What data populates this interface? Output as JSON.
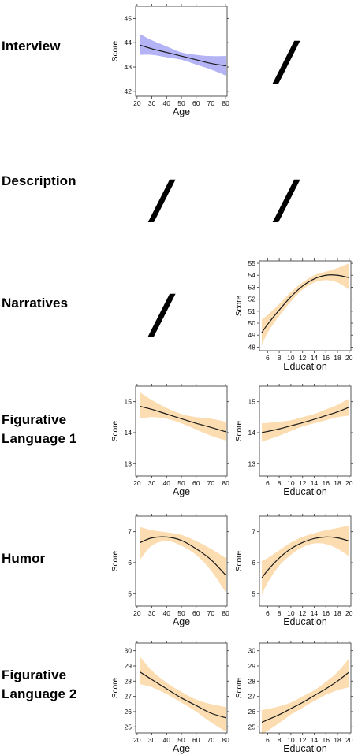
{
  "rows": [
    {
      "label_lines": [
        "Interview"
      ]
    },
    {
      "label_lines": [
        "Description"
      ]
    },
    {
      "label_lines": [
        "Narratives"
      ]
    },
    {
      "label_lines": [
        "Figurative",
        "Language 1"
      ]
    },
    {
      "label_lines": [
        "Humor"
      ]
    },
    {
      "label_lines": [
        "Figurative",
        "Language 2"
      ]
    }
  ],
  "slash_glyph": "/",
  "chart_data": [
    {
      "id": "interview-age",
      "type": "line",
      "xlabel": "Age",
      "ylabel": "Score",
      "xlim": [
        19,
        81
      ],
      "ylim": [
        41.8,
        45.5
      ],
      "xticks": [
        20,
        30,
        40,
        50,
        60,
        70,
        80
      ],
      "yticks": [
        42,
        43,
        44,
        45
      ],
      "band_color": "#b3b3f5",
      "line_color": "#1a1a1a",
      "x": [
        22,
        30,
        40,
        50,
        60,
        70,
        80
      ],
      "y": [
        43.9,
        43.75,
        43.6,
        43.45,
        43.3,
        43.15,
        43.05
      ],
      "lower": [
        43.5,
        43.5,
        43.4,
        43.3,
        43.1,
        42.9,
        42.65
      ],
      "upper": [
        44.35,
        44.1,
        43.85,
        43.6,
        43.5,
        43.45,
        43.45
      ]
    },
    {
      "id": "narratives-education",
      "type": "line",
      "xlabel": "Education",
      "ylabel": "Score",
      "xlim": [
        4.6,
        20.3
      ],
      "ylim": [
        47.7,
        55.2
      ],
      "xticks": [
        6,
        8,
        10,
        12,
        14,
        16,
        18,
        20
      ],
      "yticks": [
        48,
        49,
        50,
        51,
        52,
        53,
        54,
        55
      ],
      "band_color": "#fbddb1",
      "line_color": "#1a1a1a",
      "x": [
        5,
        6,
        8,
        10,
        12,
        14,
        16,
        18,
        20
      ],
      "y": [
        49.2,
        49.9,
        51.1,
        52.2,
        53.1,
        53.7,
        54.0,
        54.0,
        53.8
      ],
      "lower": [
        48.1,
        49.2,
        50.6,
        51.8,
        52.8,
        53.4,
        53.6,
        53.4,
        52.8
      ],
      "upper": [
        50.3,
        50.7,
        51.6,
        52.6,
        53.4,
        54.0,
        54.3,
        54.6,
        55.0
      ]
    },
    {
      "id": "figurative1-age",
      "type": "line",
      "xlabel": "Age",
      "ylabel": "Score",
      "xlim": [
        19,
        81
      ],
      "ylim": [
        12.6,
        15.5
      ],
      "xticks": [
        20,
        30,
        40,
        50,
        60,
        70,
        80
      ],
      "yticks": [
        13,
        14,
        15
      ],
      "band_color": "#fbddb1",
      "line_color": "#1a1a1a",
      "x": [
        22,
        30,
        40,
        50,
        60,
        70,
        80
      ],
      "y": [
        14.85,
        14.75,
        14.6,
        14.45,
        14.3,
        14.17,
        14.03
      ],
      "lower": [
        14.45,
        14.5,
        14.45,
        14.3,
        14.1,
        13.9,
        13.75
      ],
      "upper": [
        15.3,
        15.05,
        14.8,
        14.6,
        14.5,
        14.45,
        14.35
      ]
    },
    {
      "id": "figurative1-education",
      "type": "line",
      "xlabel": "Education",
      "ylabel": "Score",
      "xlim": [
        4.6,
        20.3
      ],
      "ylim": [
        12.6,
        15.5
      ],
      "xticks": [
        6,
        8,
        10,
        12,
        14,
        16,
        18,
        20
      ],
      "yticks": [
        13,
        14,
        15
      ],
      "band_color": "#fbddb1",
      "line_color": "#1a1a1a",
      "x": [
        5,
        8,
        10,
        12,
        14,
        16,
        18,
        20
      ],
      "y": [
        14.0,
        14.12,
        14.22,
        14.32,
        14.43,
        14.55,
        14.67,
        14.82
      ],
      "lower": [
        13.7,
        13.9,
        14.05,
        14.2,
        14.3,
        14.4,
        14.5,
        14.55
      ],
      "upper": [
        14.3,
        14.35,
        14.4,
        14.5,
        14.6,
        14.75,
        14.9,
        15.1
      ]
    },
    {
      "id": "humor-age",
      "type": "line",
      "xlabel": "Age",
      "ylabel": "Score",
      "xlim": [
        19,
        81
      ],
      "ylim": [
        4.6,
        7.5
      ],
      "xticks": [
        20,
        30,
        40,
        50,
        60,
        70,
        80
      ],
      "yticks": [
        5,
        6,
        7
      ],
      "band_color": "#fbddb1",
      "line_color": "#1a1a1a",
      "x": [
        22,
        30,
        40,
        50,
        60,
        70,
        80
      ],
      "y": [
        6.65,
        6.8,
        6.83,
        6.72,
        6.45,
        6.1,
        5.6
      ],
      "lower": [
        6.1,
        6.55,
        6.7,
        6.55,
        6.25,
        5.75,
        5.05
      ],
      "upper": [
        7.15,
        7.05,
        6.98,
        6.9,
        6.7,
        6.45,
        6.15
      ]
    },
    {
      "id": "humor-education",
      "type": "line",
      "xlabel": "Education",
      "ylabel": "Score",
      "xlim": [
        4.6,
        20.3
      ],
      "ylim": [
        4.6,
        7.5
      ],
      "xticks": [
        6,
        8,
        10,
        12,
        14,
        16,
        18,
        20
      ],
      "yticks": [
        5,
        6,
        7
      ],
      "band_color": "#fbddb1",
      "line_color": "#1a1a1a",
      "x": [
        5,
        6,
        8,
        10,
        12,
        14,
        16,
        18,
        20
      ],
      "y": [
        5.5,
        5.75,
        6.15,
        6.45,
        6.65,
        6.78,
        6.83,
        6.8,
        6.7
      ],
      "lower": [
        4.95,
        5.35,
        5.9,
        6.25,
        6.5,
        6.62,
        6.6,
        6.45,
        6.2
      ],
      "upper": [
        6.05,
        6.15,
        6.4,
        6.65,
        6.83,
        6.95,
        7.05,
        7.12,
        7.2
      ]
    },
    {
      "id": "figurative2-age",
      "type": "line",
      "xlabel": "Age",
      "ylabel": "Score",
      "xlim": [
        19,
        81
      ],
      "ylim": [
        24.6,
        30.5
      ],
      "xticks": [
        20,
        30,
        40,
        50,
        60,
        70,
        80
      ],
      "yticks": [
        25,
        26,
        27,
        28,
        29,
        30
      ],
      "band_color": "#fbddb1",
      "line_color": "#1a1a1a",
      "x": [
        22,
        30,
        40,
        50,
        60,
        70,
        80
      ],
      "y": [
        28.6,
        28.1,
        27.5,
        26.9,
        26.4,
        25.9,
        25.6
      ],
      "lower": [
        27.8,
        27.6,
        27.15,
        26.6,
        26.0,
        25.3,
        24.7
      ],
      "upper": [
        29.6,
        28.7,
        27.9,
        27.3,
        26.8,
        26.5,
        26.3
      ]
    },
    {
      "id": "figurative2-education",
      "type": "line",
      "xlabel": "Education",
      "ylabel": "Score",
      "xlim": [
        4.6,
        20.3
      ],
      "ylim": [
        24.6,
        30.5
      ],
      "xticks": [
        6,
        8,
        10,
        12,
        14,
        16,
        18,
        20
      ],
      "yticks": [
        25,
        26,
        27,
        28,
        29,
        30
      ],
      "band_color": "#fbddb1",
      "line_color": "#1a1a1a",
      "x": [
        5,
        8,
        10,
        12,
        14,
        16,
        18,
        20
      ],
      "y": [
        25.3,
        25.8,
        26.2,
        26.6,
        27.05,
        27.5,
        28.0,
        28.6
      ],
      "lower": [
        24.5,
        25.25,
        25.8,
        26.25,
        26.7,
        27.1,
        27.4,
        27.6
      ],
      "upper": [
        26.1,
        26.35,
        26.6,
        27.0,
        27.4,
        27.95,
        28.6,
        29.5
      ]
    }
  ]
}
